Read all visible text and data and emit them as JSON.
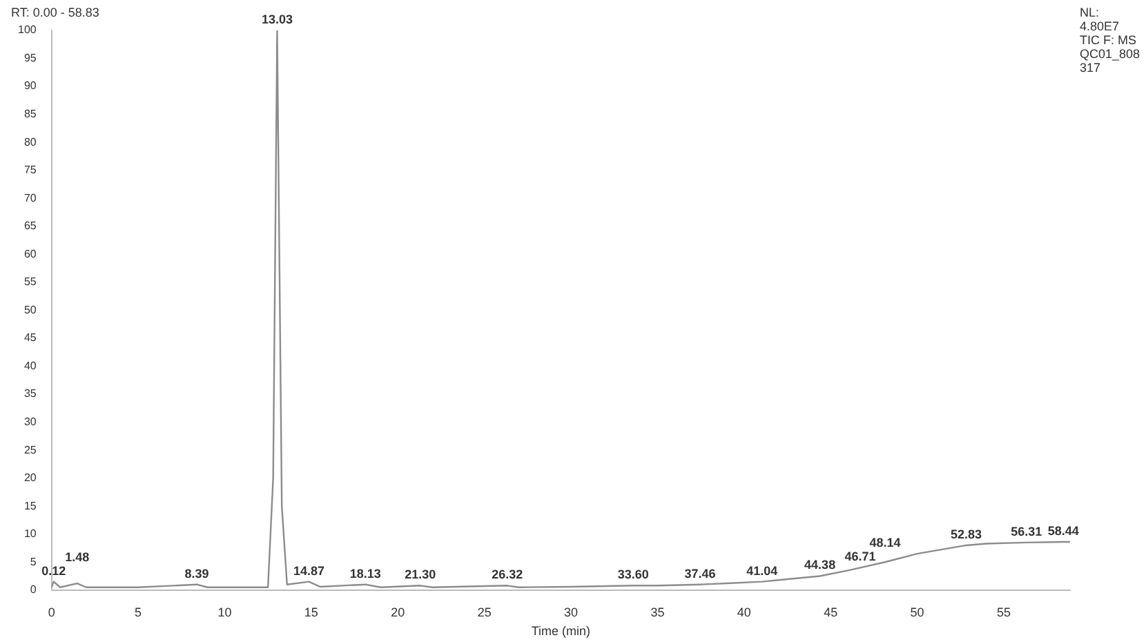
{
  "chart_data": {
    "type": "line",
    "xlabel": "Time (min)",
    "x": [
      0,
      0.12,
      0.5,
      1.48,
      2,
      5,
      8.39,
      9,
      12.5,
      12.8,
      13.03,
      13.3,
      13.6,
      14.87,
      15.5,
      18.13,
      19,
      21.3,
      22,
      26.32,
      27,
      30,
      33.6,
      35,
      37.46,
      39,
      41.04,
      42,
      44.38,
      46,
      46.71,
      48.14,
      50,
      52.83,
      54,
      56.31,
      58.44,
      58.83
    ],
    "series": [
      {
        "color": "#8c8c8c",
        "values": [
          0.5,
          1.5,
          0.5,
          1.2,
          0.5,
          0.5,
          1,
          0.5,
          0.5,
          20,
          100,
          15,
          1,
          1.5,
          0.6,
          1,
          0.5,
          0.8,
          0.5,
          0.8,
          0.5,
          0.6,
          0.8,
          0.8,
          1,
          1.2,
          1.5,
          1.8,
          2.5,
          3.5,
          4,
          5,
          6.5,
          8,
          8.3,
          8.5,
          8.6,
          8.6
        ]
      }
    ],
    "xlim": [
      0,
      58.83
    ],
    "xticks": [
      0,
      5,
      10,
      15,
      20,
      25,
      30,
      35,
      40,
      45,
      50,
      55
    ],
    "ylim": [
      0,
      100
    ],
    "yticks": [
      0,
      5,
      10,
      15,
      20,
      25,
      30,
      35,
      40,
      45,
      50,
      55,
      60,
      65,
      70,
      75,
      80,
      85,
      90,
      95,
      100
    ],
    "grid": false,
    "legend": false,
    "marker": "none",
    "line_style": "solid",
    "annotations": [
      "RT: 0.00 - 58.83",
      "NL:\n4.80E7\nTIC F: MS\nQC01_808\n317",
      {
        "text": "0.12",
        "x": 0.12,
        "y": 1.5
      },
      {
        "text": "1.48",
        "x": 1.48,
        "y": 1.2
      },
      {
        "text": "8.39",
        "x": 8.39,
        "y": 1
      },
      {
        "text": "13.03",
        "x": 13.03,
        "y": 100
      },
      {
        "text": "14.87",
        "x": 14.87,
        "y": 1.5
      },
      {
        "text": "18.13",
        "x": 18.13,
        "y": 1
      },
      {
        "text": "21.30",
        "x": 21.3,
        "y": 0.8
      },
      {
        "text": "26.32",
        "x": 26.32,
        "y": 0.8
      },
      {
        "text": "33.60",
        "x": 33.6,
        "y": 0.8
      },
      {
        "text": "37.46",
        "x": 37.46,
        "y": 1
      },
      {
        "text": "41.04",
        "x": 41.04,
        "y": 1.5
      },
      {
        "text": "44.38",
        "x": 44.38,
        "y": 2.5
      },
      {
        "text": "46.71",
        "x": 46.71,
        "y": 4
      },
      {
        "text": "48.14",
        "x": 48.14,
        "y": 5
      },
      {
        "text": "52.83",
        "x": 52.83,
        "y": 8
      },
      {
        "text": "56.31",
        "x": 56.31,
        "y": 8.5
      },
      {
        "text": "58.44",
        "x": 58.44,
        "y": 8.6
      }
    ]
  }
}
